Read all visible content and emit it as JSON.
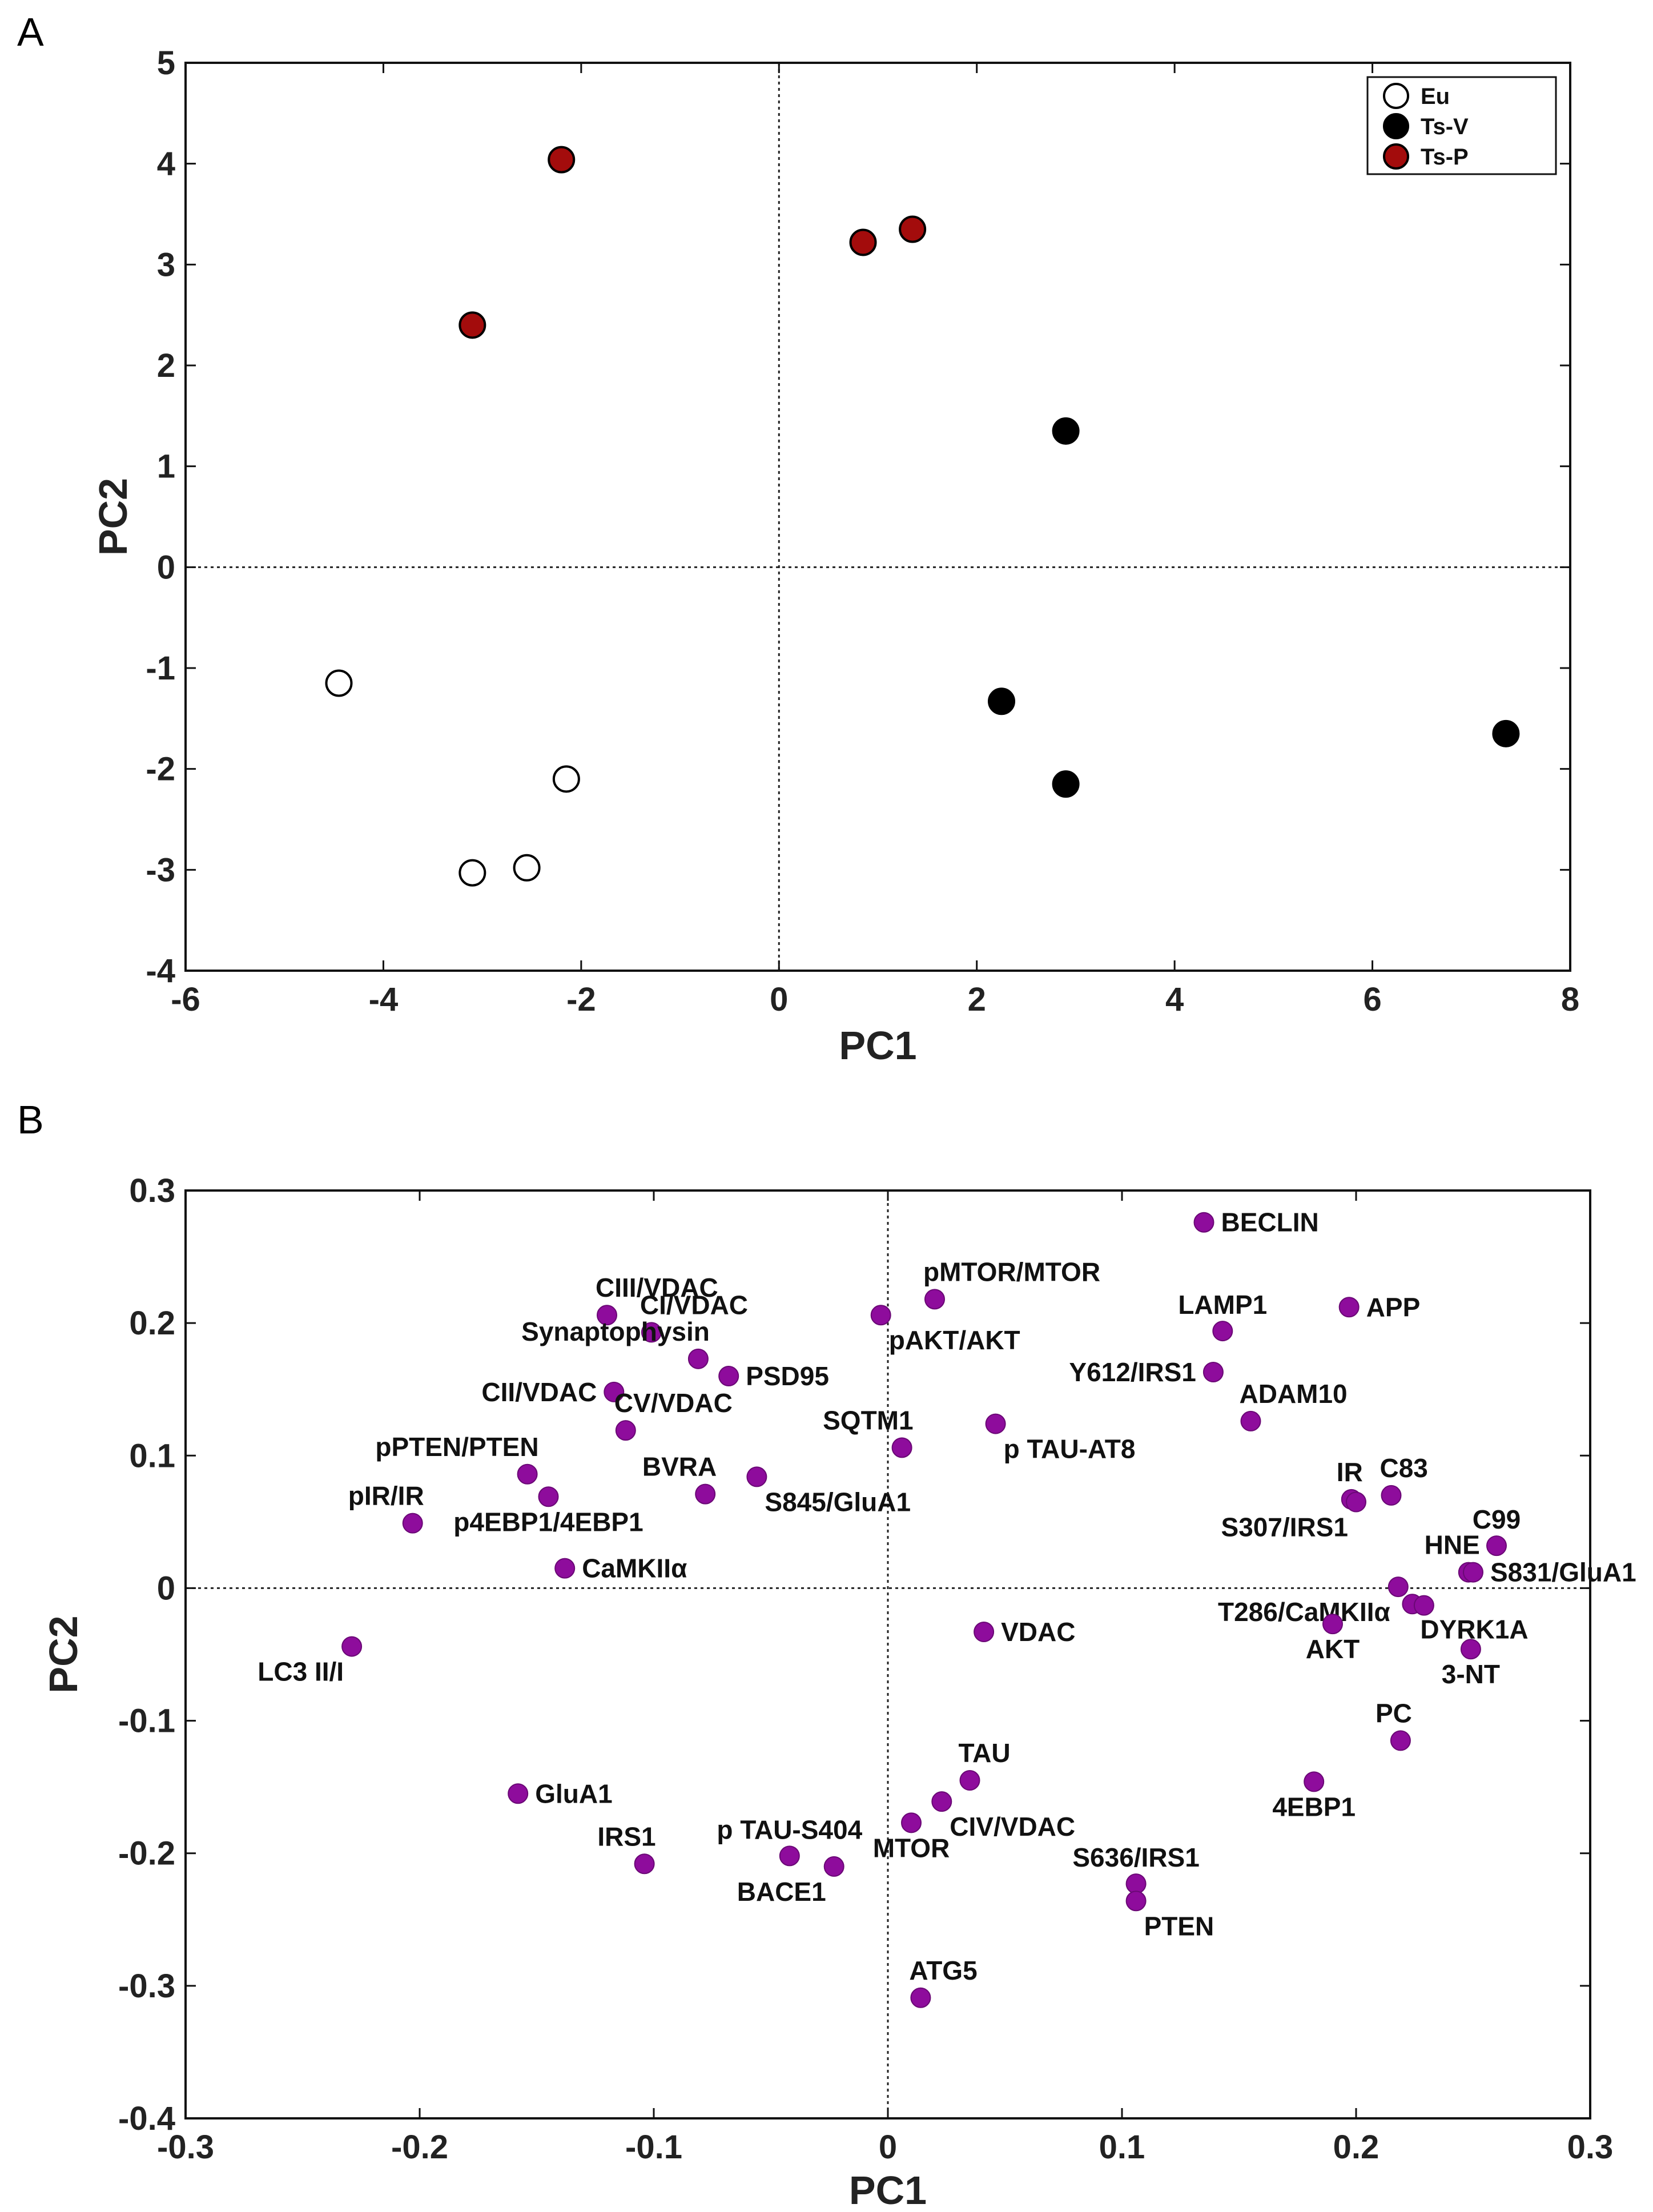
{
  "chart_data": [
    {
      "panel": "A",
      "type": "scatter",
      "xlabel": "PC1",
      "ylabel": "PC2",
      "xlim": [
        -6,
        8
      ],
      "ylim": [
        -4,
        5
      ],
      "xticks": [
        -6,
        -4,
        -2,
        0,
        2,
        4,
        6,
        8
      ],
      "yticks": [
        -4,
        -3,
        -2,
        -1,
        0,
        1,
        2,
        3,
        4,
        5
      ],
      "grid": false,
      "legend_position": "top-right",
      "series": [
        {
          "name": "Eu",
          "color": "#ffffff",
          "points": [
            [
              -4.45,
              -1.15
            ],
            [
              -2.15,
              -2.1
            ],
            [
              -3.1,
              -3.03
            ],
            [
              -2.55,
              -2.98
            ]
          ]
        },
        {
          "name": "Ts-V",
          "color": "#000000",
          "points": [
            [
              2.9,
              1.35
            ],
            [
              2.25,
              -1.33
            ],
            [
              2.9,
              -2.15
            ],
            [
              7.35,
              -1.65
            ]
          ]
        },
        {
          "name": "Ts-P",
          "color": "#a30c0c",
          "points": [
            [
              -2.2,
              4.04
            ],
            [
              -3.1,
              2.4
            ],
            [
              0.85,
              3.22
            ],
            [
              1.35,
              3.35
            ]
          ]
        }
      ]
    },
    {
      "panel": "B",
      "type": "scatter",
      "xlabel": "PC1",
      "ylabel": "PC2",
      "xlim": [
        -0.3,
        0.3
      ],
      "ylim": [
        -0.4,
        0.3
      ],
      "xticks": [
        -0.3,
        -0.2,
        -0.1,
        0,
        0.1,
        0.2,
        0.3
      ],
      "xtick_labels": [
        "-0.3",
        "-0.2",
        "-0.1",
        "0",
        "0.1",
        "0.2",
        "0.3"
      ],
      "yticks": [
        -0.4,
        -0.3,
        -0.2,
        -0.1,
        0,
        0.1,
        0.2,
        0.3
      ],
      "ytick_labels": [
        "-0.4",
        "-0.3",
        "-0.2",
        "-0.1",
        "0",
        "0.1",
        "0.2",
        "0.3"
      ],
      "grid": false,
      "color": "#8e0c9c",
      "points": [
        {
          "label": "BECLIN",
          "x": 0.135,
          "y": 0.276,
          "anchor": "r"
        },
        {
          "label": "pMTOR/MTOR",
          "x": 0.02,
          "y": 0.218,
          "anchor": "ar"
        },
        {
          "label": "pAKT/AKT",
          "x": -0.003,
          "y": 0.206,
          "anchor": "br"
        },
        {
          "label": "CIII/VDAC",
          "x": -0.12,
          "y": 0.206,
          "anchor": "ar"
        },
        {
          "label": "CI/VDAC",
          "x": -0.101,
          "y": 0.193,
          "anchor": "ar"
        },
        {
          "label": "Synaptophysin",
          "x": -0.081,
          "y": 0.173,
          "anchor": "al"
        },
        {
          "label": "PSD95",
          "x": -0.068,
          "y": 0.16,
          "anchor": "r"
        },
        {
          "label": "CII/VDAC",
          "x": -0.117,
          "y": 0.148,
          "anchor": "l"
        },
        {
          "label": "CV/VDAC",
          "x": -0.112,
          "y": 0.119,
          "anchor": "ar"
        },
        {
          "label": "SQTM1",
          "x": 0.006,
          "y": 0.106,
          "anchor": "al"
        },
        {
          "label": "p TAU-AT8",
          "x": 0.046,
          "y": 0.124,
          "anchor": "br"
        },
        {
          "label": "LAMP1",
          "x": 0.143,
          "y": 0.194,
          "anchor": "a"
        },
        {
          "label": "APP",
          "x": 0.197,
          "y": 0.212,
          "anchor": "r"
        },
        {
          "label": "Y612/IRS1",
          "x": 0.139,
          "y": 0.163,
          "anchor": "l"
        },
        {
          "label": "ADAM10",
          "x": 0.155,
          "y": 0.126,
          "anchor": "ar"
        },
        {
          "label": "pPTEN/PTEN",
          "x": -0.154,
          "y": 0.086,
          "anchor": "al"
        },
        {
          "label": "BVRA",
          "x": -0.078,
          "y": 0.071,
          "anchor": "al"
        },
        {
          "label": "S845/GluA1",
          "x": -0.056,
          "y": 0.084,
          "anchor": "br"
        },
        {
          "label": "pIR/IR",
          "x": -0.203,
          "y": 0.049,
          "anchor": "al"
        },
        {
          "label": "p4EBP1/4EBP1",
          "x": -0.145,
          "y": 0.069,
          "anchor": "b"
        },
        {
          "label": "CaMKIIα",
          "x": -0.138,
          "y": 0.015,
          "anchor": "r"
        },
        {
          "label": "IR",
          "x": 0.198,
          "y": 0.067,
          "anchor": "al"
        },
        {
          "label": "C83",
          "x": 0.215,
          "y": 0.07,
          "anchor": "ar"
        },
        {
          "label": "S307/IRS1",
          "x": 0.2,
          "y": 0.065,
          "anchor": "bl"
        },
        {
          "label": "C99",
          "x": 0.26,
          "y": 0.032,
          "anchor": "a"
        },
        {
          "label": "HNE",
          "x": 0.248,
          "y": 0.012,
          "anchor": "al"
        },
        {
          "label": "S831/GluA1",
          "x": 0.25,
          "y": 0.012,
          "anchor": "r"
        },
        {
          "label": "T286/CaMKIIα",
          "x": 0.218,
          "y": 0.001,
          "anchor": "bl"
        },
        {
          "label": "AKT",
          "x": 0.19,
          "y": -0.027,
          "anchor": "b"
        },
        {
          "label": "DYRK1A",
          "x": 0.224,
          "y": -0.012,
          "anchor": "br"
        },
        {
          "label": "",
          "x": 0.229,
          "y": -0.013,
          "anchor": "r"
        },
        {
          "label": "3-NT",
          "x": 0.249,
          "y": -0.046,
          "anchor": "b"
        },
        {
          "label": "VDAC",
          "x": 0.041,
          "y": -0.033,
          "anchor": "r"
        },
        {
          "label": "LC3 II/I",
          "x": -0.229,
          "y": -0.044,
          "anchor": "bl"
        },
        {
          "label": "PC",
          "x": 0.219,
          "y": -0.115,
          "anchor": "al"
        },
        {
          "label": "TAU",
          "x": 0.035,
          "y": -0.145,
          "anchor": "ar"
        },
        {
          "label": "CIV/VDAC",
          "x": 0.023,
          "y": -0.161,
          "anchor": "br"
        },
        {
          "label": "MTOR",
          "x": 0.01,
          "y": -0.177,
          "anchor": "b"
        },
        {
          "label": "4EBP1",
          "x": 0.182,
          "y": -0.146,
          "anchor": "b"
        },
        {
          "label": "GluA1",
          "x": -0.158,
          "y": -0.155,
          "anchor": "r"
        },
        {
          "label": "IRS1",
          "x": -0.104,
          "y": -0.208,
          "anchor": "al"
        },
        {
          "label": "p TAU-S404",
          "x": -0.042,
          "y": -0.202,
          "anchor": "a"
        },
        {
          "label": "BACE1",
          "x": -0.023,
          "y": -0.21,
          "anchor": "bl"
        },
        {
          "label": "S636/IRS1",
          "x": 0.106,
          "y": -0.223,
          "anchor": "a"
        },
        {
          "label": "PTEN",
          "x": 0.106,
          "y": -0.236,
          "anchor": "br"
        },
        {
          "label": "ATG5",
          "x": 0.014,
          "y": -0.309,
          "anchor": "ar"
        }
      ]
    }
  ],
  "panels": {
    "a_letter": "A",
    "b_letter": "B"
  }
}
